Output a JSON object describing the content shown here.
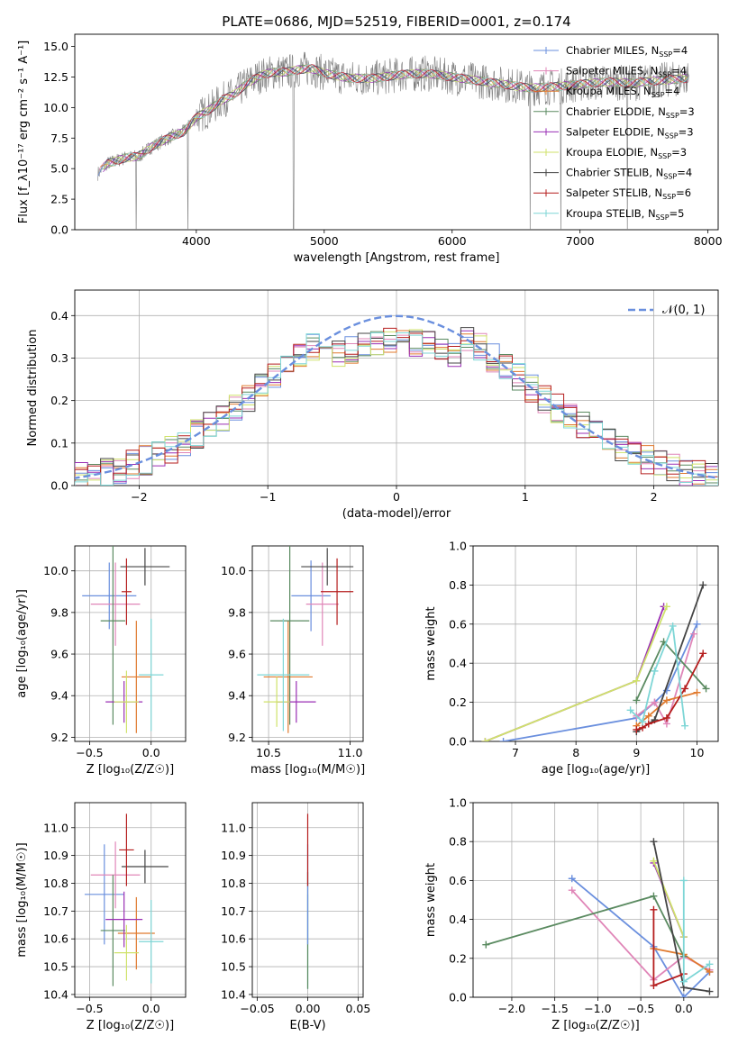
{
  "figure": {
    "title": "PLATE=0686, MJD=52519, FIBERID=0001, z=0.174",
    "series_colors": [
      "#6a8fde",
      "#e086b8",
      "#e07a2e",
      "#5a8a60",
      "#9a2fb4",
      "#cfe26a",
      "#454545",
      "#b51d1d",
      "#7ed6d6"
    ]
  },
  "chart_data": [
    {
      "id": "spectrum",
      "type": "line",
      "xlabel": "wavelength [Angstrom, rest frame]",
      "ylabel": "Flux [f_λ10⁻¹⁷ erg cm⁻² s⁻¹ A⁻¹]",
      "xlim": [
        3050,
        8080
      ],
      "ylim": [
        0,
        16
      ],
      "xticks": [
        "4000",
        "5000",
        "6000",
        "7000",
        "8000"
      ],
      "yticks": [
        "0.0",
        "2.5",
        "5.0",
        "7.5",
        "10.0",
        "12.5",
        "15.0"
      ],
      "data_color": "#7f7f7f",
      "legend_position": "right",
      "legend": [
        {
          "name": "Chabrier MILES",
          "suffix": "=4"
        },
        {
          "name": "Salpeter MILES",
          "suffix": "=4"
        },
        {
          "name": "Kroupa MILES",
          "suffix": "=4"
        },
        {
          "name": "Chabrier ELODIE",
          "suffix": "=3"
        },
        {
          "name": "Salpeter ELODIE",
          "suffix": "=3"
        },
        {
          "name": "Kroupa ELODIE",
          "suffix": "=3"
        },
        {
          "name": "Chabrier STELIB",
          "suffix": "=4"
        },
        {
          "name": "Salpeter STELIB",
          "suffix": "=6"
        },
        {
          "name": "Kroupa STELIB",
          "suffix": "=5"
        }
      ],
      "nssp_label": "N",
      "nssp_sub": "SSP",
      "continuum": [
        [
          3230,
          4.6
        ],
        [
          3300,
          5.4
        ],
        [
          3450,
          5.9
        ],
        [
          3550,
          6.0
        ],
        [
          3650,
          6.8
        ],
        [
          3800,
          7.6
        ],
        [
          3900,
          8.0
        ],
        [
          4000,
          9.2
        ],
        [
          4100,
          9.8
        ],
        [
          4200,
          10.6
        ],
        [
          4300,
          11.1
        ],
        [
          4400,
          12.0
        ],
        [
          4500,
          12.6
        ],
        [
          4600,
          12.9
        ],
        [
          4700,
          12.9
        ],
        [
          4800,
          13.1
        ],
        [
          4900,
          13.2
        ],
        [
          5000,
          12.8
        ],
        [
          5200,
          12.4
        ],
        [
          5400,
          12.4
        ],
        [
          5600,
          12.7
        ],
        [
          5800,
          12.8
        ],
        [
          6000,
          12.5
        ],
        [
          6200,
          12.2
        ],
        [
          6400,
          11.9
        ],
        [
          6600,
          11.6
        ],
        [
          6800,
          11.7
        ],
        [
          7000,
          11.9
        ],
        [
          7200,
          12.1
        ],
        [
          7400,
          12.0
        ],
        [
          7600,
          12.2
        ],
        [
          7850,
          12.4
        ]
      ]
    },
    {
      "id": "residuals",
      "type": "histogram",
      "xlabel": "(data-model)/error",
      "ylabel": "Normed distribution",
      "xlim": [
        -2.5,
        2.5
      ],
      "ylim": [
        0,
        0.46
      ],
      "xticks": [
        "−2",
        "−1",
        "0",
        "1",
        "2"
      ],
      "yticks": [
        "0.0",
        "0.1",
        "0.2",
        "0.3",
        "0.4"
      ],
      "grid": true,
      "legend_position": "top-right",
      "legend_label": "𝒩(0, 1)",
      "normal_curve": {
        "mean": 0,
        "sigma": 1,
        "color": "#6a8fde"
      }
    },
    {
      "id": "age-vs-z",
      "type": "errorbar",
      "xlabel": "Z [log₁₀(Z/Z☉)]",
      "ylabel": "age  [log₁₀(age/yr)]",
      "xlim": [
        -0.62,
        0.28
      ],
      "ylim": [
        9.18,
        10.12
      ],
      "xticks": [
        "−0.5",
        "0.0"
      ],
      "yticks": [
        "9.2",
        "9.4",
        "9.6",
        "9.8",
        "10.0"
      ],
      "grid": true,
      "points": [
        {
          "series": 0,
          "x": -0.34,
          "y": 9.88,
          "xerr": 0.22,
          "yerr": 0.16
        },
        {
          "series": 1,
          "x": -0.29,
          "y": 9.84,
          "xerr": 0.2,
          "yerr": 0.2
        },
        {
          "series": 2,
          "x": -0.12,
          "y": 9.49,
          "xerr": 0.12,
          "yerr": 0.27
        },
        {
          "series": 3,
          "x": -0.31,
          "y": 9.76,
          "xerr": 0.1,
          "yerr": 0.5
        },
        {
          "series": 4,
          "x": -0.22,
          "y": 9.37,
          "xerr": 0.15,
          "yerr": 0.1
        },
        {
          "series": 5,
          "x": -0.2,
          "y": 9.37,
          "xerr": 0.1,
          "yerr": 0.15
        },
        {
          "series": 6,
          "x": -0.05,
          "y": 10.02,
          "xerr": 0.2,
          "yerr": 0.09
        },
        {
          "series": 7,
          "x": -0.2,
          "y": 9.9,
          "xerr": 0.04,
          "yerr": 0.16
        },
        {
          "series": 8,
          "x": 0.0,
          "y": 9.5,
          "xerr": 0.1,
          "yerr": 0.27
        }
      ]
    },
    {
      "id": "age-vs-mass",
      "type": "errorbar",
      "xlabel": "mass [log₁₀(M/M☉)]",
      "ylabel": "",
      "xlim": [
        10.4,
        11.08
      ],
      "ylim": [
        9.18,
        10.12
      ],
      "xticks": [
        "10.5",
        "11.0"
      ],
      "yticks": [
        "9.2",
        "9.4",
        "9.6",
        "9.8",
        "10.0"
      ],
      "grid": true,
      "points": [
        {
          "series": 0,
          "x": 10.76,
          "y": 9.88,
          "xerr": 0.12,
          "yerr": 0.17
        },
        {
          "series": 1,
          "x": 10.83,
          "y": 9.84,
          "xerr": 0.1,
          "yerr": 0.2
        },
        {
          "series": 2,
          "x": 10.62,
          "y": 9.49,
          "xerr": 0.15,
          "yerr": 0.27
        },
        {
          "series": 3,
          "x": 10.63,
          "y": 9.76,
          "xerr": 0.12,
          "yerr": 0.5
        },
        {
          "series": 4,
          "x": 10.67,
          "y": 9.37,
          "xerr": 0.12,
          "yerr": 0.1
        },
        {
          "series": 5,
          "x": 10.55,
          "y": 9.37,
          "xerr": 0.08,
          "yerr": 0.12
        },
        {
          "series": 6,
          "x": 10.86,
          "y": 10.02,
          "xerr": 0.16,
          "yerr": 0.09
        },
        {
          "series": 7,
          "x": 10.92,
          "y": 9.9,
          "xerr": 0.1,
          "yerr": 0.16
        },
        {
          "series": 8,
          "x": 10.59,
          "y": 9.5,
          "xerr": 0.16,
          "yerr": 0.27
        }
      ]
    },
    {
      "id": "weight-vs-age",
      "type": "line",
      "xlabel": "age  [log₁₀(age/yr)]",
      "ylabel": "mass weight",
      "xlim": [
        6.3,
        10.35
      ],
      "ylim": [
        0,
        1
      ],
      "xticks": [
        "7",
        "8",
        "9",
        "10"
      ],
      "yticks": [
        "0.0",
        "0.2",
        "0.4",
        "0.6",
        "0.8",
        "1.0"
      ],
      "grid": true,
      "series": [
        {
          "series": 0,
          "points": [
            [
              6.8,
              0
            ],
            [
              9.0,
              0.12
            ],
            [
              9.3,
              0.2
            ],
            [
              9.5,
              0.26
            ],
            [
              10.0,
              0.6
            ]
          ]
        },
        {
          "series": 1,
          "points": [
            [
              9.0,
              0.13
            ],
            [
              9.3,
              0.2
            ],
            [
              9.5,
              0.09
            ],
            [
              9.95,
              0.55
            ]
          ]
        },
        {
          "series": 2,
          "points": [
            [
              9.0,
              0.08
            ],
            [
              9.2,
              0.13
            ],
            [
              9.5,
              0.21
            ],
            [
              10.0,
              0.25
            ]
          ]
        },
        {
          "series": 3,
          "points": [
            [
              9.0,
              0.21
            ],
            [
              9.45,
              0.51
            ],
            [
              10.15,
              0.27
            ]
          ]
        },
        {
          "series": 4,
          "points": [
            [
              6.5,
              0
            ],
            [
              9.0,
              0.31
            ],
            [
              9.45,
              0.69
            ]
          ]
        },
        {
          "series": 5,
          "points": [
            [
              6.5,
              0
            ],
            [
              9.0,
              0.31
            ],
            [
              9.5,
              0.69
            ]
          ]
        },
        {
          "series": 6,
          "points": [
            [
              9.0,
              0.05
            ],
            [
              9.3,
              0.11
            ],
            [
              10.1,
              0.8
            ]
          ]
        },
        {
          "series": 7,
          "points": [
            [
              9.0,
              0.06
            ],
            [
              9.1,
              0.07
            ],
            [
              9.2,
              0.09
            ],
            [
              9.5,
              0.12
            ],
            [
              9.8,
              0.27
            ],
            [
              10.1,
              0.45
            ]
          ]
        },
        {
          "series": 8,
          "points": [
            [
              8.9,
              0.16
            ],
            [
              9.1,
              0.1
            ],
            [
              9.3,
              0.36
            ],
            [
              9.6,
              0.59
            ],
            [
              9.8,
              0.08
            ]
          ]
        }
      ]
    },
    {
      "id": "mass-vs-z",
      "type": "errorbar",
      "xlabel": "Z [log₁₀(Z/Z☉)]",
      "ylabel": "mass [log₁₀(M/M☉)]",
      "xlim": [
        -0.62,
        0.28
      ],
      "ylim": [
        10.39,
        11.09
      ],
      "xticks": [
        "−0.5",
        "0.0"
      ],
      "yticks": [
        "10.4",
        "10.5",
        "10.6",
        "10.7",
        "10.8",
        "10.9",
        "11.0"
      ],
      "grid": true,
      "points": [
        {
          "series": 0,
          "x": -0.38,
          "y": 10.76,
          "xerr": 0.16,
          "yerr": 0.18
        },
        {
          "series": 1,
          "x": -0.29,
          "y": 10.83,
          "xerr": 0.2,
          "yerr": 0.12
        },
        {
          "series": 2,
          "x": -0.12,
          "y": 10.62,
          "xerr": 0.15,
          "yerr": 0.13
        },
        {
          "series": 3,
          "x": -0.31,
          "y": 10.63,
          "xerr": 0.1,
          "yerr": 0.2
        },
        {
          "series": 4,
          "x": -0.22,
          "y": 10.67,
          "xerr": 0.15,
          "yerr": 0.1
        },
        {
          "series": 5,
          "x": -0.2,
          "y": 10.55,
          "xerr": 0.1,
          "yerr": 0.1
        },
        {
          "series": 6,
          "x": -0.05,
          "y": 10.86,
          "xerr": 0.19,
          "yerr": 0.06
        },
        {
          "series": 7,
          "x": -0.2,
          "y": 10.92,
          "xerr": 0.06,
          "yerr": 0.13
        },
        {
          "series": 8,
          "x": 0.0,
          "y": 10.59,
          "xerr": 0.1,
          "yerr": 0.15
        }
      ]
    },
    {
      "id": "mass-vs-ebv",
      "type": "errorbar",
      "xlabel": "E(B-V)",
      "ylabel": "",
      "xlim": [
        -0.055,
        0.055
      ],
      "ylim": [
        10.39,
        11.09
      ],
      "xticks": [
        "−0.05",
        "0.00",
        "0.05"
      ],
      "yticks": [
        "10.4",
        "10.5",
        "10.6",
        "10.7",
        "10.8",
        "10.9",
        "11.0"
      ],
      "grid": true,
      "points": [
        {
          "series": 8,
          "x": 0.0,
          "y": 10.59,
          "xerr": 0,
          "yerr": 0.17
        },
        {
          "series": 3,
          "x": 0.0,
          "y": 10.63,
          "xerr": 0,
          "yerr": 0.21
        },
        {
          "series": 0,
          "x": 0.0,
          "y": 10.76,
          "xerr": 0,
          "yerr": 0.18
        },
        {
          "series": 7,
          "x": 0.0,
          "y": 10.92,
          "xerr": 0,
          "yerr": 0.13
        }
      ]
    },
    {
      "id": "weight-vs-z",
      "type": "line",
      "xlabel": "Z [log₁₀(Z/Z☉)]",
      "ylabel": "mass weight",
      "xlim": [
        -2.45,
        0.4
      ],
      "ylim": [
        0,
        1
      ],
      "xticks": [
        "−2.0",
        "−1.5",
        "−1.0",
        "−0.5",
        "0.0"
      ],
      "yticks": [
        "0.0",
        "0.2",
        "0.4",
        "0.6",
        "0.8",
        "1.0"
      ],
      "grid": true,
      "series": [
        {
          "series": 0,
          "points": [
            [
              -1.3,
              0.61
            ],
            [
              -0.35,
              0.26
            ],
            [
              0.0,
              0.0
            ],
            [
              0.3,
              0.13
            ]
          ]
        },
        {
          "series": 1,
          "points": [
            [
              -1.3,
              0.55
            ],
            [
              -0.35,
              0.09
            ],
            [
              0.0,
              0.21
            ],
            [
              0.3,
              0.14
            ]
          ]
        },
        {
          "series": 2,
          "points": [
            [
              -0.35,
              0.25
            ],
            [
              0.0,
              0.22
            ],
            [
              0.3,
              0.13
            ]
          ]
        },
        {
          "series": 3,
          "points": [
            [
              -2.3,
              0.27
            ],
            [
              -0.35,
              0.52
            ],
            [
              0.0,
              0.21
            ]
          ]
        },
        {
          "series": 4,
          "points": [
            [
              -0.35,
              0.69
            ],
            [
              0.0,
              0.31
            ]
          ]
        },
        {
          "series": 5,
          "points": [
            [
              -0.35,
              0.7
            ],
            [
              0.0,
              0.31
            ]
          ]
        },
        {
          "series": 6,
          "points": [
            [
              -0.35,
              0.8
            ],
            [
              0.0,
              0.05
            ],
            [
              0.3,
              0.03
            ]
          ]
        },
        {
          "series": 7,
          "points": [
            [
              -0.35,
              0.45
            ],
            [
              -0.35,
              0.06
            ],
            [
              0.0,
              0.12
            ]
          ]
        },
        {
          "series": 8,
          "points": [
            [
              0.0,
              0.6
            ],
            [
              0.0,
              0.08
            ],
            [
              0.3,
              0.17
            ]
          ]
        }
      ]
    }
  ]
}
